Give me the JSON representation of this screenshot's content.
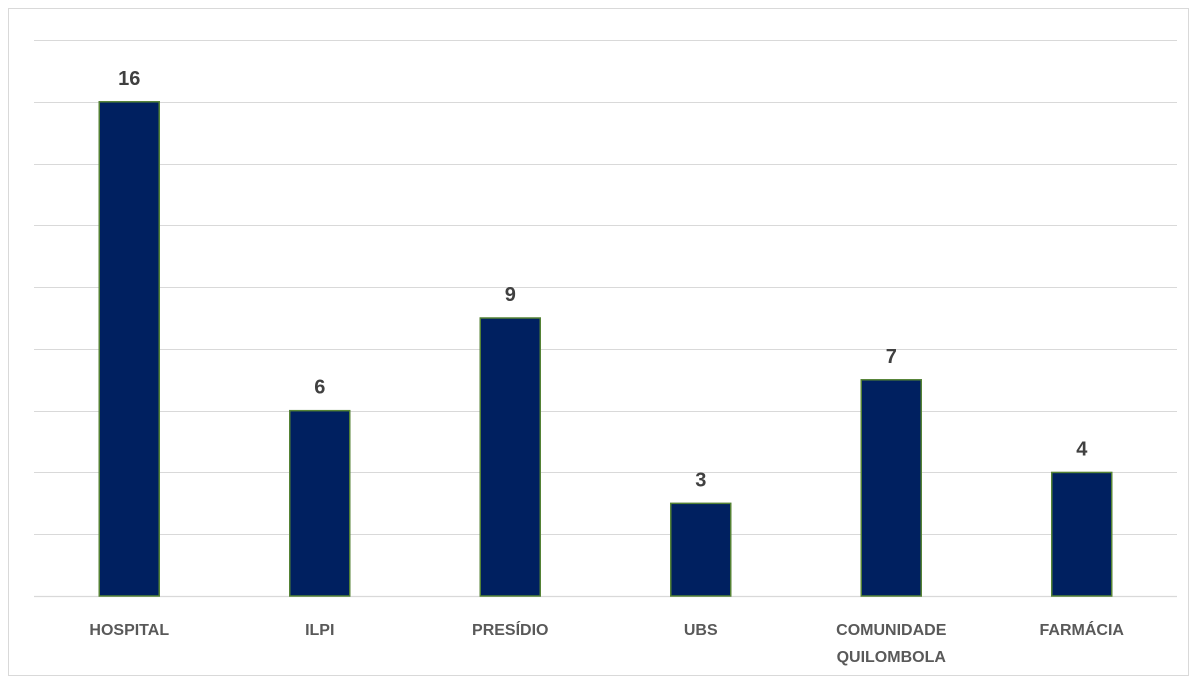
{
  "chart_data": {
    "type": "bar",
    "categories": [
      "HOSPITAL",
      "ILPI",
      "PRESÍDIO",
      "UBS",
      "COMUNIDADE QUILOMBOLA",
      "FARMÁCIA"
    ],
    "category_lines": [
      [
        "HOSPITAL"
      ],
      [
        "ILPI"
      ],
      [
        "PRESÍDIO"
      ],
      [
        "UBS"
      ],
      [
        "COMUNIDADE",
        "QUILOMBOLA"
      ],
      [
        "FARMÁCIA"
      ]
    ],
    "values": [
      16,
      6,
      9,
      3,
      7,
      4
    ],
    "title": "",
    "xlabel": "",
    "ylabel": "",
    "ylim": [
      0,
      18
    ],
    "grid_step": 2,
    "grid": true,
    "y_tick_labels_shown": false,
    "legend": "none",
    "data_labels": true,
    "colors": {
      "bar_fill": "#002060",
      "bar_outline": "#548235",
      "gridline": "#d9d9d9",
      "data_label": "#404040",
      "category_label": "#595959"
    }
  }
}
